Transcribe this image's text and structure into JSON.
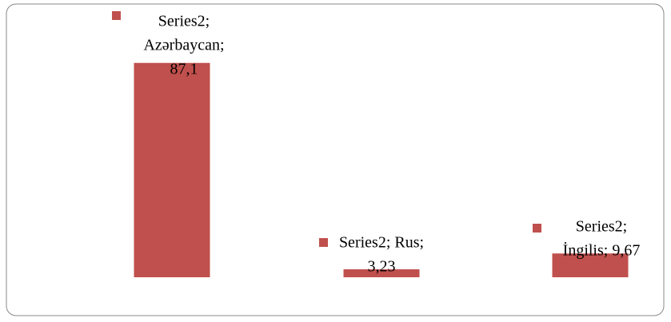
{
  "chart_data": {
    "type": "bar",
    "values": [
      87.1,
      3.23,
      9.67
    ],
    "value_labels": [
      [
        "Series2;",
        "Azərbaycan;",
        "87,1"
      ],
      [
        "Series2; Rus;",
        "3,23"
      ],
      [
        "Series2;",
        "İngilis; 9,67"
      ]
    ],
    "color": "#c0504d",
    "ylim": [
      0,
      100
    ]
  }
}
